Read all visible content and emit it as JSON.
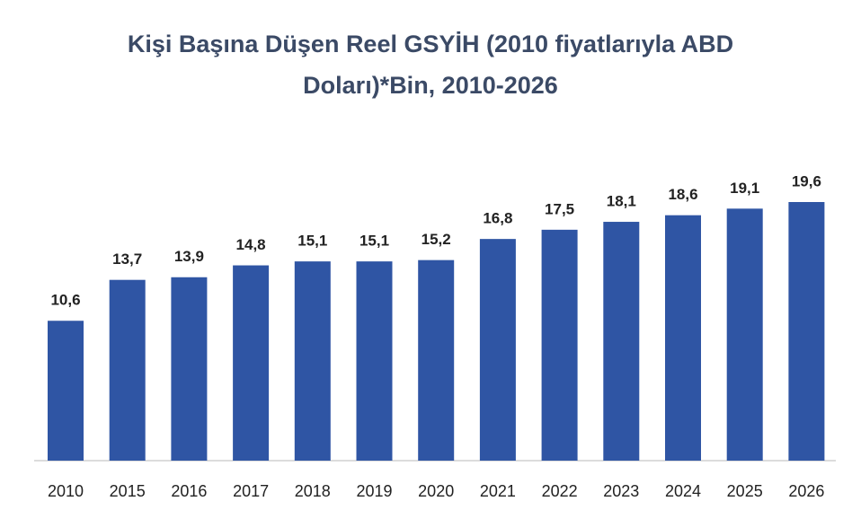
{
  "chart_data": {
    "type": "bar",
    "title": "Kişi Başına Düşen Reel GSYİH (2010 fiyatlarıyla ABD Doları)*Bin, 2010-2026",
    "categories": [
      "2010",
      "2015",
      "2016",
      "2017",
      "2018",
      "2019",
      "2020",
      "2021",
      "2022",
      "2023",
      "2024",
      "2025",
      "2026"
    ],
    "values": [
      10.6,
      13.7,
      13.9,
      14.8,
      15.1,
      15.1,
      15.2,
      16.8,
      17.5,
      18.1,
      18.6,
      19.1,
      19.6
    ],
    "value_labels": [
      "10,6",
      "13,7",
      "13,9",
      "14,8",
      "15,1",
      "15,1",
      "15,2",
      "16,8",
      "17,5",
      "18,1",
      "18,6",
      "19,1",
      "19,6"
    ],
    "color": "#2f55a4"
  }
}
